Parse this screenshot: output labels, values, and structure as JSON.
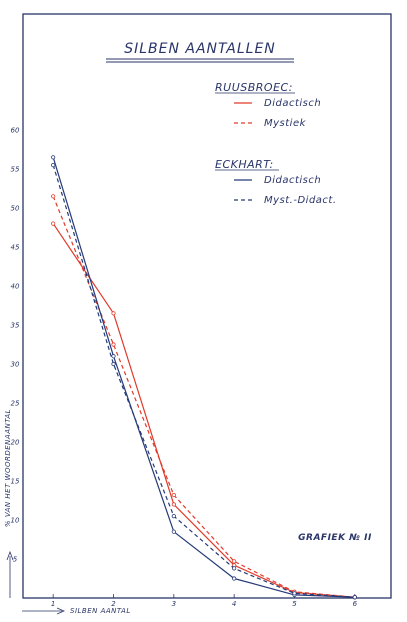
{
  "chart_data": {
    "type": "line",
    "title": "SILBEN AANTALLEN",
    "annotation": "GRAFIEK № II",
    "xlabel": "SILBEN AANTAL",
    "ylabel": "% VAN HET WOORDENAANTAL",
    "x": [
      1,
      2,
      3,
      4,
      5,
      6
    ],
    "x_ticks": [
      "1",
      "2",
      "3",
      "4",
      "5",
      "6"
    ],
    "y_ticks": [
      "5",
      "10",
      "15",
      "20",
      "25",
      "30",
      "35",
      "40",
      "45",
      "50",
      "55",
      "60"
    ],
    "xlim": [
      0.5,
      6.6
    ],
    "ylim": [
      0,
      60
    ],
    "grid": false,
    "legend_position": "top-right",
    "legend_groups": [
      {
        "title": "RUUSBROEC:",
        "entries": [
          0,
          1
        ]
      },
      {
        "title": "ECKHART:",
        "entries": [
          2,
          3
        ]
      }
    ],
    "series": [
      {
        "name": "Didactisch",
        "group": "RUUSBROEC",
        "color": "#e03a2a",
        "dash": "solid",
        "values": [
          48,
          36.5,
          12,
          4.2,
          0.7,
          0.1
        ]
      },
      {
        "name": "Mystiek",
        "group": "RUUSBROEC",
        "color": "#e03a2a",
        "dash": "dashed",
        "values": [
          51.5,
          32.5,
          13.2,
          4.7,
          0.8,
          0.1
        ]
      },
      {
        "name": "Didactisch",
        "group": "ECKHART",
        "color": "#253a78",
        "dash": "solid",
        "values": [
          56.5,
          31,
          8.5,
          2.5,
          0.4,
          0.1
        ]
      },
      {
        "name": "Myst.-Didact.",
        "group": "ECKHART",
        "color": "#253a78",
        "dash": "dashed",
        "values": [
          55.5,
          30,
          10.5,
          3.8,
          0.6,
          0.1
        ]
      }
    ]
  }
}
